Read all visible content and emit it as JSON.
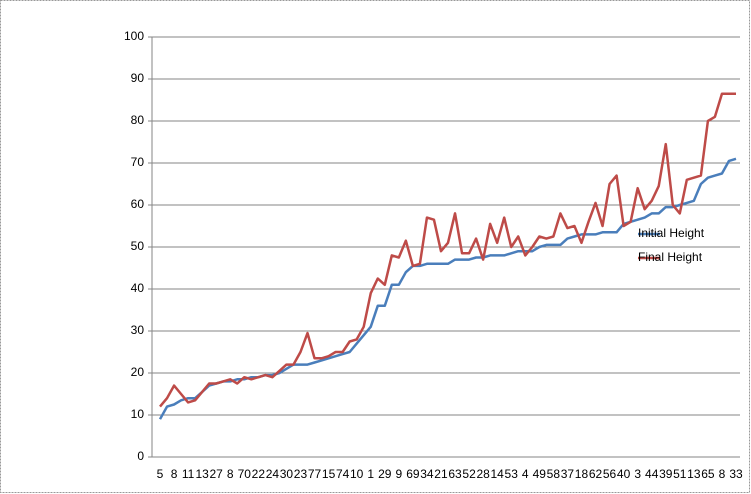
{
  "chart_data": {
    "type": "line",
    "categories": [
      "5",
      null,
      "8",
      null,
      "11",
      null,
      "13",
      null,
      "27",
      null,
      "8",
      null,
      "70",
      null,
      "22",
      null,
      "24",
      null,
      "30",
      null,
      "23",
      null,
      "77",
      null,
      "15",
      null,
      "74",
      null,
      "10",
      null,
      "1",
      null,
      "29",
      null,
      "9",
      null,
      "69",
      null,
      "34",
      null,
      "21",
      null,
      "63",
      null,
      "52",
      null,
      "28",
      null,
      "14",
      null,
      "53",
      null,
      "4",
      null,
      "49",
      null,
      "58",
      null,
      "37",
      null,
      "18",
      null,
      "62",
      null,
      "56",
      null,
      "40",
      null,
      "3",
      null,
      "44",
      null,
      "39",
      null,
      "51",
      null,
      "13",
      null,
      "65",
      null,
      "8",
      null,
      "33"
    ],
    "series": [
      {
        "name": "Initial Height",
        "color": "#4a7ebb",
        "values": [
          9,
          12,
          12.5,
          13.5,
          14,
          14,
          15.5,
          17,
          17.5,
          18,
          18,
          18.5,
          18.5,
          19,
          19,
          19.5,
          19.5,
          20,
          21,
          22,
          22,
          22,
          22.5,
          23,
          23.5,
          24,
          24.5,
          25,
          27,
          29,
          31,
          36,
          36,
          41,
          41,
          44,
          45.5,
          45.5,
          46,
          46,
          46,
          46,
          47,
          47,
          47,
          47.5,
          47.5,
          48,
          48,
          48,
          48.5,
          49,
          49,
          49,
          50,
          50.5,
          50.5,
          50.5,
          52,
          52.5,
          53,
          53,
          53,
          53.5,
          53.5,
          53.5,
          55.5,
          56,
          56.5,
          57,
          58,
          58,
          59.5,
          59.5,
          60,
          60.5,
          61,
          65,
          66.5,
          67,
          67.5,
          70.5,
          71
        ]
      },
      {
        "name": "Final Height",
        "color": "#be4b48",
        "values": [
          12,
          14,
          17,
          15,
          13,
          13.5,
          15.5,
          17.5,
          17.5,
          18,
          18.5,
          17.5,
          19,
          18.5,
          19,
          19.5,
          19,
          20.5,
          22,
          22,
          25,
          29.5,
          23.5,
          23.5,
          24,
          25,
          25,
          27.5,
          28,
          31,
          39,
          42.5,
          41,
          48,
          47.5,
          51.5,
          45.5,
          46,
          57,
          56.5,
          49,
          51,
          58,
          48.5,
          48.5,
          52,
          47,
          55.5,
          51,
          57,
          50,
          52.5,
          48,
          50,
          52.5,
          52,
          52.5,
          58,
          54.5,
          55,
          51,
          56,
          60.5,
          55,
          65,
          67,
          55,
          56,
          64,
          59,
          61,
          64.5,
          74.5,
          60,
          58,
          66,
          66.5,
          67,
          80,
          81,
          86.5,
          86.5,
          86.5
        ]
      }
    ],
    "ylim": [
      0,
      100
    ],
    "yticks": [
      0,
      10,
      20,
      30,
      40,
      50,
      60,
      70,
      80,
      90,
      100
    ],
    "grid": true,
    "legend": "right"
  }
}
